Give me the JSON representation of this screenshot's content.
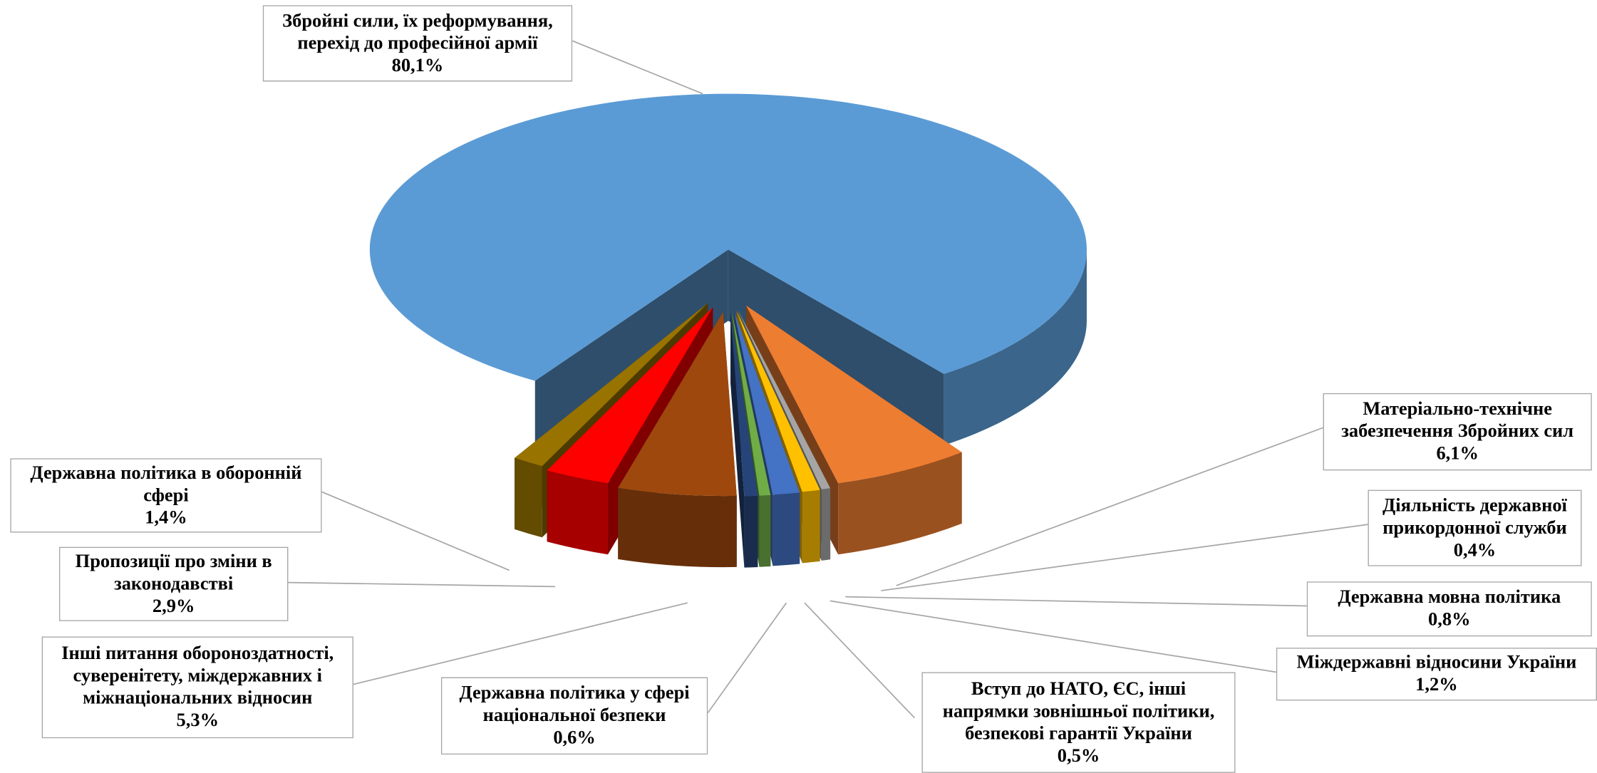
{
  "chart_data": {
    "type": "pie3d",
    "categories": [
      "Збройні сили, їх реформування, перехід до професійної армії",
      "Матеріально-технічне забезпечення Збройних сил",
      "Діяльність державної прикордонної служби",
      "Державна мовна політика",
      "Міждержавні відносини України",
      "Вступ до НАТО, ЄС, інші напрямки зовнішньої політики, безпекові гарантії України",
      "Державна політика у сфері національної безпеки",
      "Інші питання обороноздатності, суверенітету, міждержавних і міжнаціональних відносин",
      "Пропозиції про зміни в законодавстві",
      "Державна політика в оборонній сфері"
    ],
    "values": [
      80.1,
      6.1,
      0.4,
      0.8,
      1.2,
      0.5,
      0.6,
      5.3,
      2.9,
      1.4
    ],
    "value_labels": [
      "80,1%",
      "6,1%",
      "0,4%",
      "0,8%",
      "1,2%",
      "0,5%",
      "0,6%",
      "5,3%",
      "2,9%",
      "1,4%"
    ],
    "colors": [
      "#5b9bd5",
      "#ed7d31",
      "#a5a5a5",
      "#ffc000",
      "#4472c4",
      "#70ad47",
      "#264478",
      "#9e480e",
      "#ff0000",
      "#997300"
    ]
  }
}
